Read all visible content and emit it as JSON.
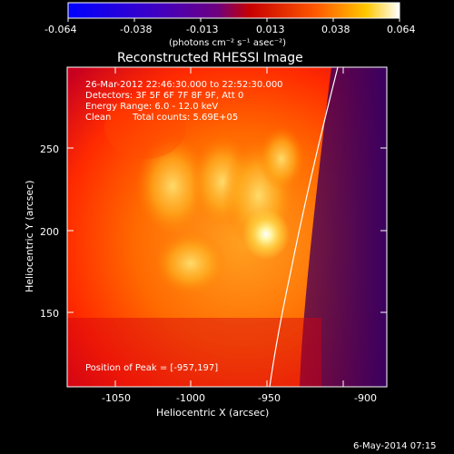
{
  "colorbar": {
    "ticks": [
      "-0.064",
      "-0.038",
      "-0.013",
      "0.013",
      "0.038",
      "0.064"
    ],
    "units": "(photons cm⁻² s⁻¹ asec⁻²)"
  },
  "title": "Reconstructed RHESSI Image",
  "annotations": {
    "line1": "26-Mar-2012 22:46:30.000 to 22:52:30.000",
    "line2": "Detectors: 3F 5F 6F 7F 8F 9F, Att 0",
    "line3": "Energy Range: 6.0 - 12.0 keV",
    "line4_left": "Clean",
    "line4_right": "Total counts: 5.69E+05",
    "peak": "Position of Peak = [-957,197]"
  },
  "axes": {
    "xlabel": "Heliocentric X (arcsec)",
    "ylabel": "Heliocentric Y (arcsec)",
    "xticks": [
      "-1050",
      "-1000",
      "-950",
      "-900"
    ],
    "yticks": [
      "150",
      "200",
      "250"
    ]
  },
  "footer_date": "6-May-2014 07:15",
  "colors": {
    "background": "#000000",
    "hot": "#ffffff",
    "mid": "#ff3300",
    "cool": "#5a0078"
  }
}
